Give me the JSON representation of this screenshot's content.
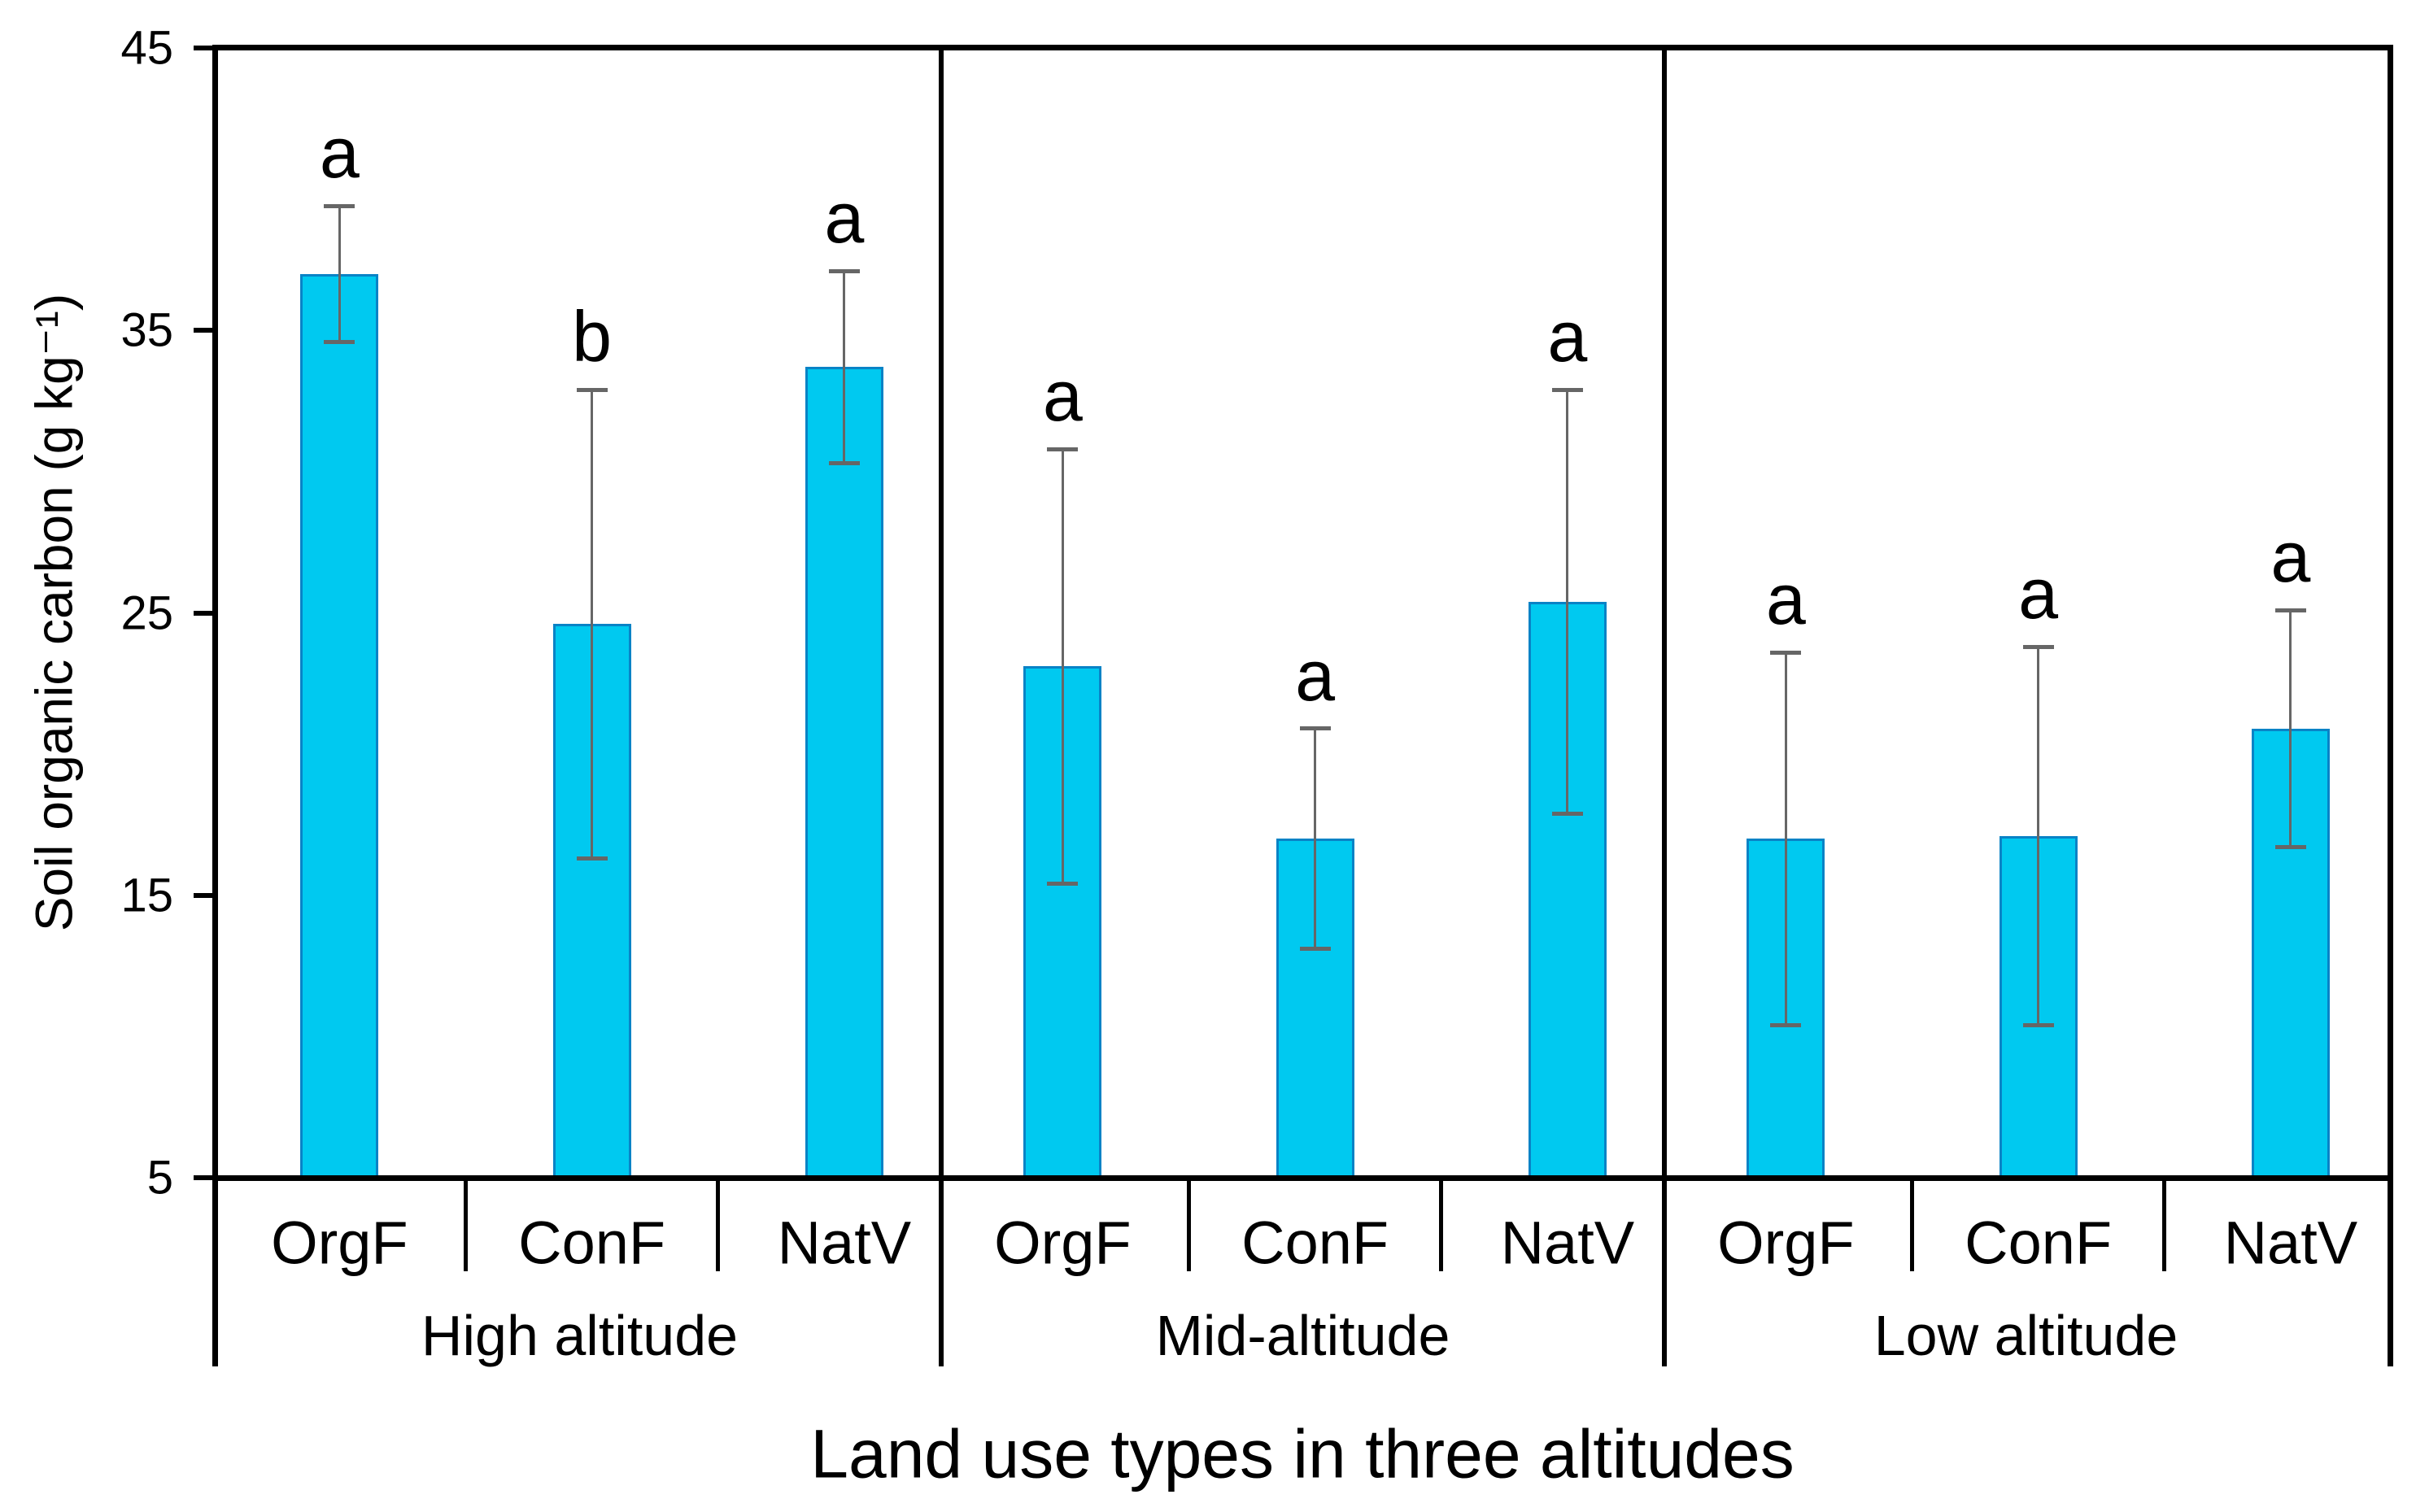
{
  "chart_data": {
    "type": "bar",
    "title": "",
    "xlabel": "Land use types in three altitudes",
    "ylabel": "Soil organic carbon (g kg⁻¹)",
    "ylim": [
      5,
      45
    ],
    "yticks": [
      5,
      15,
      25,
      35,
      45
    ],
    "grid": false,
    "legend": "none",
    "bar_baseline": 5,
    "error_bars": "symmetric with caps",
    "groups": [
      {
        "label": "High altitude",
        "bars": [
          {
            "category": "OrgF",
            "value": 37.0,
            "error": 2.4,
            "sig_letter": "a"
          },
          {
            "category": "ConF",
            "value": 24.6,
            "error": 8.3,
            "sig_letter": "b"
          },
          {
            "category": "NatV",
            "value": 33.7,
            "error": 3.4,
            "sig_letter": "a"
          }
        ]
      },
      {
        "label": "Mid-altitude",
        "bars": [
          {
            "category": "OrgF",
            "value": 23.1,
            "error": 7.7,
            "sig_letter": "a"
          },
          {
            "category": "ConF",
            "value": 17.0,
            "error": 3.9,
            "sig_letter": "a"
          },
          {
            "category": "NatV",
            "value": 25.4,
            "error": 7.5,
            "sig_letter": "a"
          }
        ]
      },
      {
        "label": "Low altitude",
        "bars": [
          {
            "category": "OrgF",
            "value": 17.0,
            "error": 6.6,
            "sig_letter": "a"
          },
          {
            "category": "ConF",
            "value": 17.1,
            "error": 6.7,
            "sig_letter": "a"
          },
          {
            "category": "NatV",
            "value": 20.9,
            "error": 4.2,
            "sig_letter": "a"
          }
        ]
      }
    ],
    "colors": {
      "bar_fill": "#00C9F0",
      "bar_border": "#0983C6",
      "error_bar": "#666666",
      "axis": "#000000"
    }
  }
}
